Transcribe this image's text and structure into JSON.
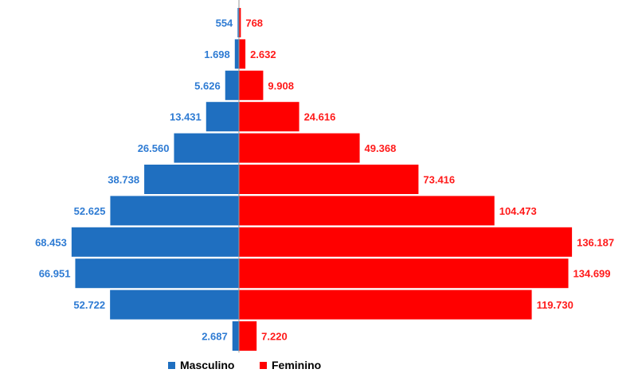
{
  "chart_data": {
    "type": "bar",
    "orientation": "horizontal-mirrored",
    "series": [
      {
        "name": "Masculino",
        "color": "#1F6FC0",
        "label_color": "#2E7BD3",
        "values": [
          554,
          1698,
          5626,
          13431,
          26560,
          38738,
          52625,
          68453,
          66951,
          52722,
          2687
        ],
        "labels": [
          "554",
          "1.698",
          "5.626",
          "13.431",
          "26.560",
          "38.738",
          "52.625",
          "68.453",
          "66.951",
          "52.722",
          "2.687"
        ]
      },
      {
        "name": "Feminino",
        "color": "#FF0000",
        "label_color": "#FF1A1A",
        "values": [
          768,
          2632,
          9908,
          24616,
          49368,
          73416,
          104473,
          136187,
          134699,
          119730,
          7220
        ],
        "labels": [
          "768",
          "2.632",
          "9.908",
          "24.616",
          "49.368",
          "73.416",
          "104.473",
          "136.187",
          "134.699",
          "119.730",
          "7.220"
        ]
      }
    ],
    "legend_position": "bottom-center",
    "grid": false
  }
}
